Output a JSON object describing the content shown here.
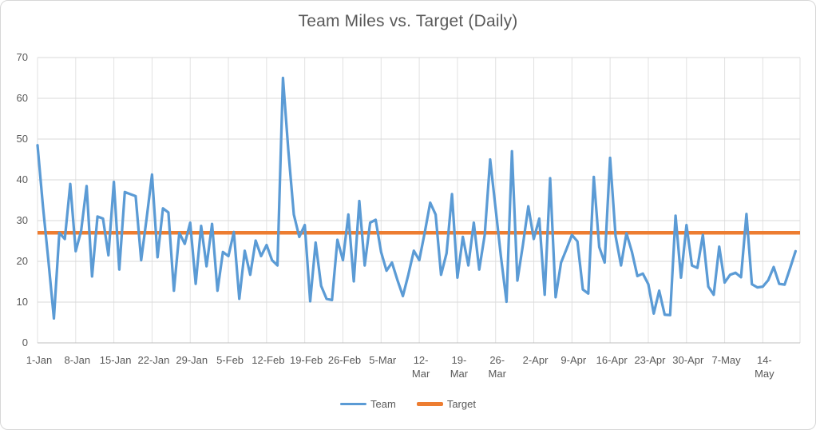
{
  "chart_data": {
    "type": "line",
    "title": "Team Miles vs. Target (Daily)",
    "xlabel": "",
    "ylabel": "",
    "ylim": [
      0,
      70
    ],
    "y_tick_step": 10,
    "y_tick_labels": [
      "0",
      "10",
      "20",
      "30",
      "40",
      "50",
      "60",
      "70"
    ],
    "x_frequency": "daily",
    "x_start_date": "1-Jan",
    "x_end_date": "20-May",
    "x_tick_interval_days": 7,
    "x_tick_labels": [
      "1-Jan",
      "8-Jan",
      "15-Jan",
      "22-Jan",
      "29-Jan",
      "5-Feb",
      "12-Feb",
      "19-Feb",
      "26-Feb",
      "5-Mar",
      "12-Mar",
      "19-Mar",
      "26-Mar",
      "2-Apr",
      "9-Apr",
      "16-Apr",
      "23-Apr",
      "30-Apr",
      "7-May",
      "14-May"
    ],
    "x_tick_labels_wrapped": [
      "12-Mar",
      "19-Mar",
      "26-Mar",
      "14-May"
    ],
    "grid": "both",
    "gridline_color": "#D9D9D9",
    "axis_line_color": "#BFBFBF",
    "text_color": "#595959",
    "legend_position": "bottom",
    "series": [
      {
        "name": "Team",
        "color": "#5B9BD5",
        "line_width": 3.25,
        "values": [
          48.5,
          33.5,
          20,
          6,
          27,
          25.5,
          39,
          22.5,
          27.5,
          38.5,
          16.3,
          31,
          30.5,
          21.5,
          39.5,
          18,
          37,
          36.5,
          36,
          20.3,
          30.5,
          41.3,
          21,
          33,
          32,
          12.8,
          27,
          24.3,
          29.5,
          14.5,
          28.7,
          18.8,
          29.2,
          12.8,
          22.3,
          21.3,
          27.2,
          10.8,
          22.6,
          16.7,
          25.1,
          21.3,
          24,
          20.3,
          19,
          65,
          47,
          31.5,
          26,
          28.9,
          10.2,
          24.6,
          14,
          10.8,
          10.5,
          25.3,
          20.3,
          31.5,
          15.1,
          34.8,
          19,
          29.5,
          30.2,
          22.3,
          17.7,
          19.7,
          15.4,
          11.5,
          16.7,
          22.6,
          20.3,
          27,
          34.4,
          31.5,
          16.7,
          22,
          36.5,
          16,
          26,
          19,
          29.5,
          18,
          26.5,
          45,
          33,
          21,
          10.1,
          47,
          15.3,
          24,
          33.5,
          25.5,
          30.5,
          11.8,
          40.4,
          11.2,
          19.7,
          23,
          26.5,
          24.9,
          13.1,
          12.1,
          40.7,
          23.5,
          19.7,
          45.4,
          26.2,
          19,
          26.9,
          22.3,
          16.4,
          17,
          14.4,
          7.2,
          12.8,
          6.9,
          6.8,
          31.2,
          16,
          28.9,
          19,
          18.4,
          26.5,
          13.8,
          11.8,
          23.6,
          14.8,
          16.7,
          17.2,
          16.1,
          31.6,
          14.4,
          13.6,
          13.8,
          15.4,
          18.6,
          14.5,
          14.3,
          18.3,
          22.5
        ]
      },
      {
        "name": "Target",
        "color": "#ED7D31",
        "line_width": 4.5,
        "constant_value": 27
      }
    ]
  }
}
